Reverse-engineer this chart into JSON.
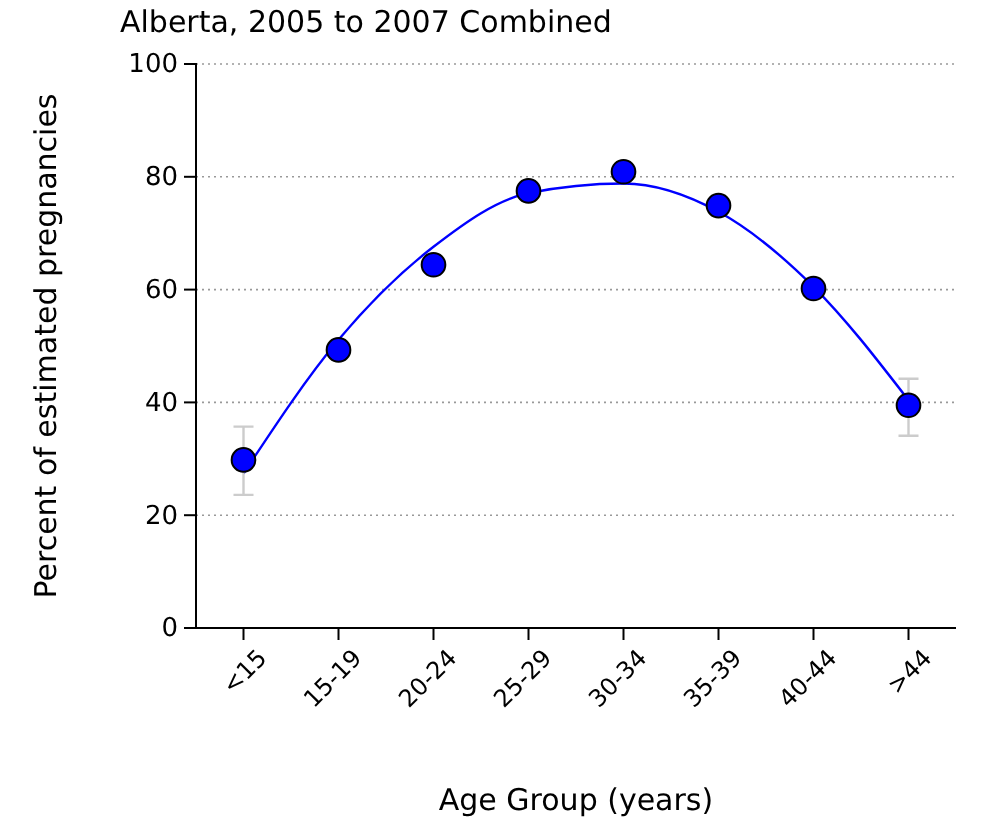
{
  "chart_data": {
    "type": "scatter",
    "title": "Alberta, 2005 to 2007 Combined",
    "xlabel": "Age Group (years)",
    "ylabel": "Percent of estimated pregnancies",
    "categories": [
      "<15",
      "15-19",
      "20-24",
      "25-29",
      "30-34",
      "35-39",
      "40-44",
      ">44"
    ],
    "series": [
      {
        "color": "#0000ff",
        "marker": "circle",
        "values": [
          29.8,
          49.3,
          64.4,
          77.5,
          80.9,
          74.9,
          60.2,
          39.5
        ],
        "errors": [
          [
            23.6,
            35.7
          ],
          null,
          null,
          null,
          null,
          null,
          null,
          [
            34.1,
            44.2
          ]
        ]
      },
      {
        "type": "line",
        "color": "#0000ff",
        "values": [
          27.4,
          51.1,
          67.6,
          77.1,
          78.8,
          73.8,
          60.5,
          40.4
        ]
      }
    ],
    "ylim": [
      0,
      100
    ],
    "yticks": [
      0,
      20,
      40,
      60,
      80,
      100
    ],
    "grid": "y"
  }
}
